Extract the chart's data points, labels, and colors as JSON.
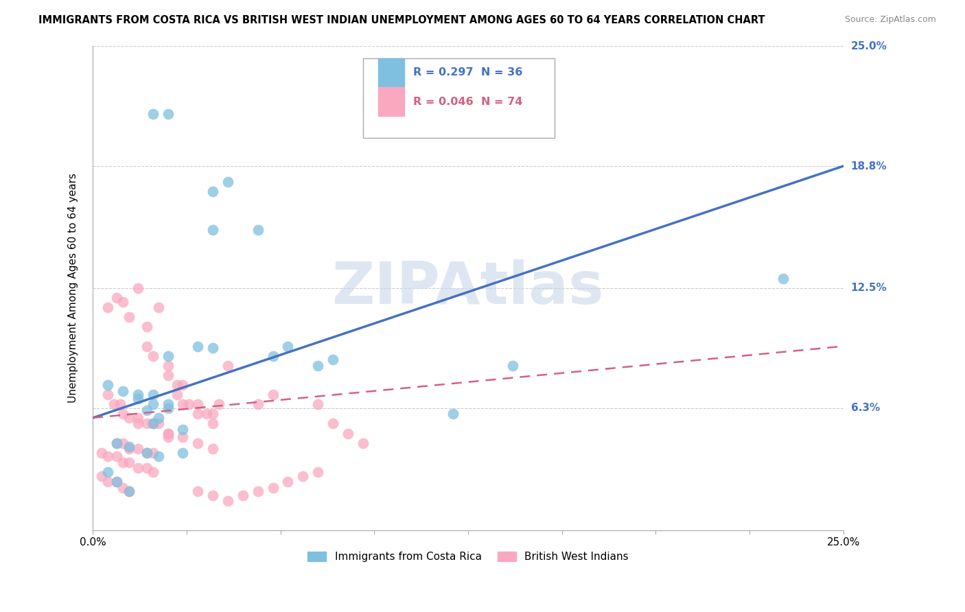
{
  "title": "IMMIGRANTS FROM COSTA RICA VS BRITISH WEST INDIAN UNEMPLOYMENT AMONG AGES 60 TO 64 YEARS CORRELATION CHART",
  "source": "Source: ZipAtlas.com",
  "ylabel": "Unemployment Among Ages 60 to 64 years",
  "xlim": [
    0,
    0.25
  ],
  "ylim": [
    0,
    0.25
  ],
  "xtick_positions": [
    0.0,
    0.03125,
    0.0625,
    0.09375,
    0.125,
    0.15625,
    0.1875,
    0.21875,
    0.25
  ],
  "xtick_labels": [
    "0.0%",
    "",
    "",
    "",
    "",
    "",
    "",
    "",
    "25.0%"
  ],
  "ytick_labels": [
    "6.3%",
    "12.5%",
    "18.8%",
    "25.0%"
  ],
  "ytick_positions": [
    0.063,
    0.125,
    0.188,
    0.25
  ],
  "blue_R": 0.297,
  "blue_N": 36,
  "pink_R": 0.046,
  "pink_N": 74,
  "blue_color": "#7fbfdf",
  "pink_color": "#f9a8c0",
  "blue_line_color": "#4472c4",
  "pink_line_color": "#d46080",
  "ytick_color": "#4472c4",
  "legend_label_blue": "Immigrants from Costa Rica",
  "legend_label_pink": "British West Indians",
  "watermark": "ZIPAtlas",
  "blue_scatter_x": [
    0.02,
    0.025,
    0.04,
    0.045,
    0.04,
    0.055,
    0.025,
    0.03,
    0.035,
    0.04,
    0.005,
    0.01,
    0.015,
    0.015,
    0.02,
    0.02,
    0.025,
    0.02,
    0.03,
    0.008,
    0.012,
    0.018,
    0.022,
    0.005,
    0.008,
    0.012,
    0.14,
    0.23,
    0.12,
    0.06,
    0.065,
    0.075,
    0.08,
    0.025,
    0.018,
    0.022
  ],
  "blue_scatter_y": [
    0.215,
    0.215,
    0.175,
    0.18,
    0.155,
    0.155,
    0.09,
    0.04,
    0.095,
    0.094,
    0.075,
    0.072,
    0.07,
    0.068,
    0.07,
    0.065,
    0.065,
    0.055,
    0.052,
    0.045,
    0.043,
    0.04,
    0.038,
    0.03,
    0.025,
    0.02,
    0.085,
    0.13,
    0.06,
    0.09,
    0.095,
    0.085,
    0.088,
    0.063,
    0.062,
    0.058
  ],
  "pink_scatter_x": [
    0.005,
    0.008,
    0.01,
    0.012,
    0.015,
    0.018,
    0.018,
    0.02,
    0.022,
    0.025,
    0.025,
    0.028,
    0.028,
    0.03,
    0.03,
    0.032,
    0.035,
    0.035,
    0.038,
    0.04,
    0.04,
    0.042,
    0.045,
    0.005,
    0.007,
    0.009,
    0.01,
    0.012,
    0.015,
    0.015,
    0.018,
    0.02,
    0.022,
    0.025,
    0.025,
    0.008,
    0.01,
    0.012,
    0.015,
    0.018,
    0.02,
    0.003,
    0.005,
    0.008,
    0.01,
    0.012,
    0.015,
    0.018,
    0.02,
    0.003,
    0.005,
    0.008,
    0.01,
    0.012,
    0.055,
    0.06,
    0.075,
    0.08,
    0.085,
    0.09,
    0.035,
    0.04,
    0.045,
    0.05,
    0.055,
    0.06,
    0.065,
    0.07,
    0.075,
    0.02,
    0.025,
    0.03,
    0.035,
    0.04
  ],
  "pink_scatter_y": [
    0.115,
    0.12,
    0.118,
    0.11,
    0.125,
    0.105,
    0.095,
    0.09,
    0.115,
    0.085,
    0.08,
    0.075,
    0.07,
    0.075,
    0.065,
    0.065,
    0.065,
    0.06,
    0.06,
    0.06,
    0.055,
    0.065,
    0.085,
    0.07,
    0.065,
    0.065,
    0.06,
    0.058,
    0.058,
    0.055,
    0.055,
    0.055,
    0.055,
    0.05,
    0.048,
    0.045,
    0.045,
    0.042,
    0.042,
    0.04,
    0.04,
    0.04,
    0.038,
    0.038,
    0.035,
    0.035,
    0.032,
    0.032,
    0.03,
    0.028,
    0.025,
    0.025,
    0.022,
    0.02,
    0.065,
    0.07,
    0.065,
    0.055,
    0.05,
    0.045,
    0.02,
    0.018,
    0.015,
    0.018,
    0.02,
    0.022,
    0.025,
    0.028,
    0.03,
    0.055,
    0.05,
    0.048,
    0.045,
    0.042
  ],
  "blue_trend_x": [
    0,
    0.25
  ],
  "blue_trend_y_start": 0.058,
  "blue_trend_y_end": 0.188,
  "pink_trend_x": [
    0,
    0.25
  ],
  "pink_trend_y_start": 0.058,
  "pink_trend_y_end": 0.095
}
